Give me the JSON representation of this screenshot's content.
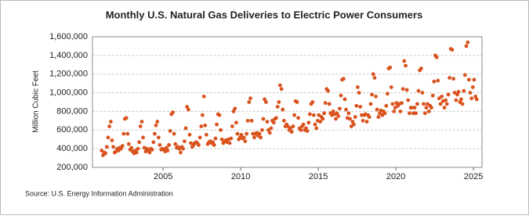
{
  "chart_data": {
    "type": "scatter",
    "title": "Monthly U.S. Natural Gas Deliveries to Electric Power Consumers",
    "ylabel": "Million Cubic Feet",
    "source": "Source: U.S. Energy Information Administration",
    "color": "#d9531e",
    "grid": true,
    "xlim": [
      2000.45,
      2025.55
    ],
    "xticks": [
      2005,
      2010,
      2015,
      2020,
      2025
    ],
    "ylim": [
      200000,
      1600000
    ],
    "yticks": [
      {
        "value": 200000,
        "label": "200,000"
      },
      {
        "value": 400000,
        "label": "400,000"
      },
      {
        "value": 600000,
        "label": "600,000"
      },
      {
        "value": 800000,
        "label": "800,000"
      },
      {
        "value": 1000000,
        "label": "1,000,000"
      },
      {
        "value": 1200000,
        "label": "1,200,000"
      },
      {
        "value": 1400000,
        "label": "1,400,000"
      },
      {
        "value": 1600000,
        "label": "1,600,000"
      }
    ],
    "x": [
      2001.04,
      2001.13,
      2001.21,
      2001.29,
      2001.38,
      2001.46,
      2001.54,
      2001.63,
      2001.71,
      2001.79,
      2001.88,
      2001.96,
      2002.04,
      2002.13,
      2002.21,
      2002.29,
      2002.38,
      2002.46,
      2002.54,
      2002.63,
      2002.71,
      2002.79,
      2002.88,
      2002.96,
      2003.04,
      2003.13,
      2003.21,
      2003.29,
      2003.38,
      2003.46,
      2003.54,
      2003.63,
      2003.71,
      2003.79,
      2003.88,
      2003.96,
      2004.04,
      2004.13,
      2004.21,
      2004.29,
      2004.38,
      2004.46,
      2004.54,
      2004.63,
      2004.71,
      2004.79,
      2004.88,
      2004.96,
      2005.04,
      2005.13,
      2005.21,
      2005.29,
      2005.38,
      2005.46,
      2005.54,
      2005.63,
      2005.71,
      2005.79,
      2005.88,
      2005.96,
      2006.04,
      2006.13,
      2006.21,
      2006.29,
      2006.38,
      2006.46,
      2006.54,
      2006.63,
      2006.71,
      2006.79,
      2006.88,
      2006.96,
      2007.04,
      2007.13,
      2007.21,
      2007.29,
      2007.38,
      2007.46,
      2007.54,
      2007.63,
      2007.71,
      2007.79,
      2007.88,
      2007.96,
      2008.04,
      2008.13,
      2008.21,
      2008.29,
      2008.38,
      2008.46,
      2008.54,
      2008.63,
      2008.71,
      2008.79,
      2008.88,
      2008.96,
      2009.04,
      2009.13,
      2009.21,
      2009.29,
      2009.38,
      2009.46,
      2009.54,
      2009.63,
      2009.71,
      2009.79,
      2009.88,
      2009.96,
      2010.04,
      2010.13,
      2010.21,
      2010.29,
      2010.38,
      2010.46,
      2010.54,
      2010.63,
      2010.71,
      2010.79,
      2010.88,
      2010.96,
      2011.04,
      2011.13,
      2011.21,
      2011.29,
      2011.38,
      2011.46,
      2011.54,
      2011.63,
      2011.71,
      2011.79,
      2011.88,
      2011.96,
      2012.04,
      2012.13,
      2012.21,
      2012.29,
      2012.38,
      2012.46,
      2012.54,
      2012.63,
      2012.71,
      2012.79,
      2012.88,
      2012.96,
      2013.04,
      2013.13,
      2013.21,
      2013.29,
      2013.38,
      2013.46,
      2013.54,
      2013.63,
      2013.71,
      2013.79,
      2013.88,
      2013.96,
      2014.04,
      2014.13,
      2014.21,
      2014.29,
      2014.38,
      2014.46,
      2014.54,
      2014.63,
      2014.71,
      2014.79,
      2014.88,
      2014.96,
      2015.04,
      2015.13,
      2015.21,
      2015.29,
      2015.38,
      2015.46,
      2015.54,
      2015.63,
      2015.71,
      2015.79,
      2015.88,
      2015.96,
      2016.04,
      2016.13,
      2016.21,
      2016.29,
      2016.38,
      2016.46,
      2016.54,
      2016.63,
      2016.71,
      2016.79,
      2016.88,
      2016.96,
      2017.04,
      2017.13,
      2017.21,
      2017.29,
      2017.38,
      2017.46,
      2017.54,
      2017.63,
      2017.71,
      2017.79,
      2017.88,
      2017.96,
      2018.04,
      2018.13,
      2018.21,
      2018.29,
      2018.38,
      2018.46,
      2018.54,
      2018.63,
      2018.71,
      2018.79,
      2018.88,
      2018.96,
      2019.04,
      2019.13,
      2019.21,
      2019.29,
      2019.38,
      2019.46,
      2019.54,
      2019.63,
      2019.71,
      2019.79,
      2019.88,
      2019.96,
      2020.04,
      2020.13,
      2020.21,
      2020.29,
      2020.38,
      2020.46,
      2020.54,
      2020.63,
      2020.71,
      2020.79,
      2020.88,
      2020.96,
      2021.04,
      2021.13,
      2021.21,
      2021.29,
      2021.38,
      2021.46,
      2021.54,
      2021.63,
      2021.71,
      2021.79,
      2021.88,
      2021.96,
      2022.04,
      2022.13,
      2022.21,
      2022.29,
      2022.38,
      2022.46,
      2022.54,
      2022.63,
      2022.71,
      2022.79,
      2022.88,
      2022.96,
      2023.04,
      2023.13,
      2023.21,
      2023.29,
      2023.38,
      2023.46,
      2023.54,
      2023.63,
      2023.71,
      2023.79,
      2023.88,
      2023.96,
      2024.04,
      2024.13,
      2024.21,
      2024.29,
      2024.38,
      2024.46,
      2024.54,
      2024.63,
      2024.71,
      2024.79,
      2024.88,
      2024.96,
      2025.04,
      2025.13,
      2025.21
    ],
    "values": [
      380000,
      330000,
      360000,
      350000,
      420000,
      520000,
      640000,
      690000,
      490000,
      420000,
      360000,
      370000,
      400000,
      380000,
      410000,
      400000,
      430000,
      560000,
      720000,
      730000,
      560000,
      450000,
      390000,
      410000,
      370000,
      350000,
      380000,
      360000,
      400000,
      470000,
      640000,
      690000,
      520000,
      410000,
      370000,
      400000,
      380000,
      360000,
      400000,
      390000,
      470000,
      560000,
      650000,
      690000,
      520000,
      440000,
      390000,
      400000,
      390000,
      370000,
      410000,
      380000,
      440000,
      590000,
      770000,
      790000,
      560000,
      450000,
      410000,
      420000,
      400000,
      360000,
      420000,
      400000,
      480000,
      620000,
      850000,
      820000,
      550000,
      460000,
      420000,
      440000,
      460000,
      470000,
      460000,
      440000,
      520000,
      640000,
      760000,
      960000,
      650000,
      550000,
      450000,
      470000,
      480000,
      460000,
      470000,
      440000,
      510000,
      660000,
      770000,
      760000,
      600000,
      500000,
      460000,
      480000,
      490000,
      470000,
      500000,
      460000,
      510000,
      640000,
      800000,
      830000,
      680000,
      560000,
      500000,
      520000,
      550000,
      510000,
      520000,
      480000,
      560000,
      700000,
      900000,
      940000,
      700000,
      560000,
      520000,
      560000,
      570000,
      540000,
      560000,
      520000,
      600000,
      720000,
      930000,
      900000,
      690000,
      600000,
      570000,
      620000,
      700000,
      680000,
      720000,
      730000,
      850000,
      900000,
      1080000,
      1040000,
      820000,
      700000,
      640000,
      660000,
      640000,
      600000,
      620000,
      580000,
      640000,
      760000,
      910000,
      900000,
      730000,
      620000,
      600000,
      640000,
      660000,
      600000,
      620000,
      590000,
      680000,
      770000,
      880000,
      900000,
      760000,
      660000,
      620000,
      700000,
      760000,
      690000,
      740000,
      720000,
      780000,
      890000,
      1040000,
      1020000,
      880000,
      780000,
      760000,
      800000,
      770000,
      720000,
      780000,
      750000,
      830000,
      970000,
      1140000,
      1150000,
      930000,
      820000,
      730000,
      780000,
      720000,
      640000,
      690000,
      660000,
      740000,
      860000,
      1060000,
      1000000,
      850000,
      760000,
      700000,
      760000,
      770000,
      690000,
      760000,
      740000,
      880000,
      980000,
      1200000,
      1160000,
      960000,
      820000,
      740000,
      780000,
      810000,
      760000,
      800000,
      780000,
      860000,
      990000,
      1260000,
      1270000,
      1060000,
      880000,
      800000,
      840000,
      890000,
      860000,
      880000,
      800000,
      890000,
      1040000,
      1340000,
      1290000,
      1030000,
      920000,
      780000,
      840000,
      840000,
      780000,
      840000,
      780000,
      880000,
      1020000,
      1240000,
      1260000,
      1000000,
      880000,
      780000,
      840000,
      880000,
      800000,
      860000,
      840000,
      970000,
      1120000,
      1400000,
      1380000,
      1130000,
      940000,
      880000,
      960000,
      910000,
      840000,
      920000,
      880000,
      980000,
      1160000,
      1470000,
      1460000,
      1150000,
      1000000,
      920000,
      980000,
      1010000,
      900000,
      930000,
      880000,
      1020000,
      1190000,
      1500000,
      1540000,
      1140000,
      1000000,
      940000,
      1060000,
      1140000,
      960000,
      930000
    ]
  }
}
